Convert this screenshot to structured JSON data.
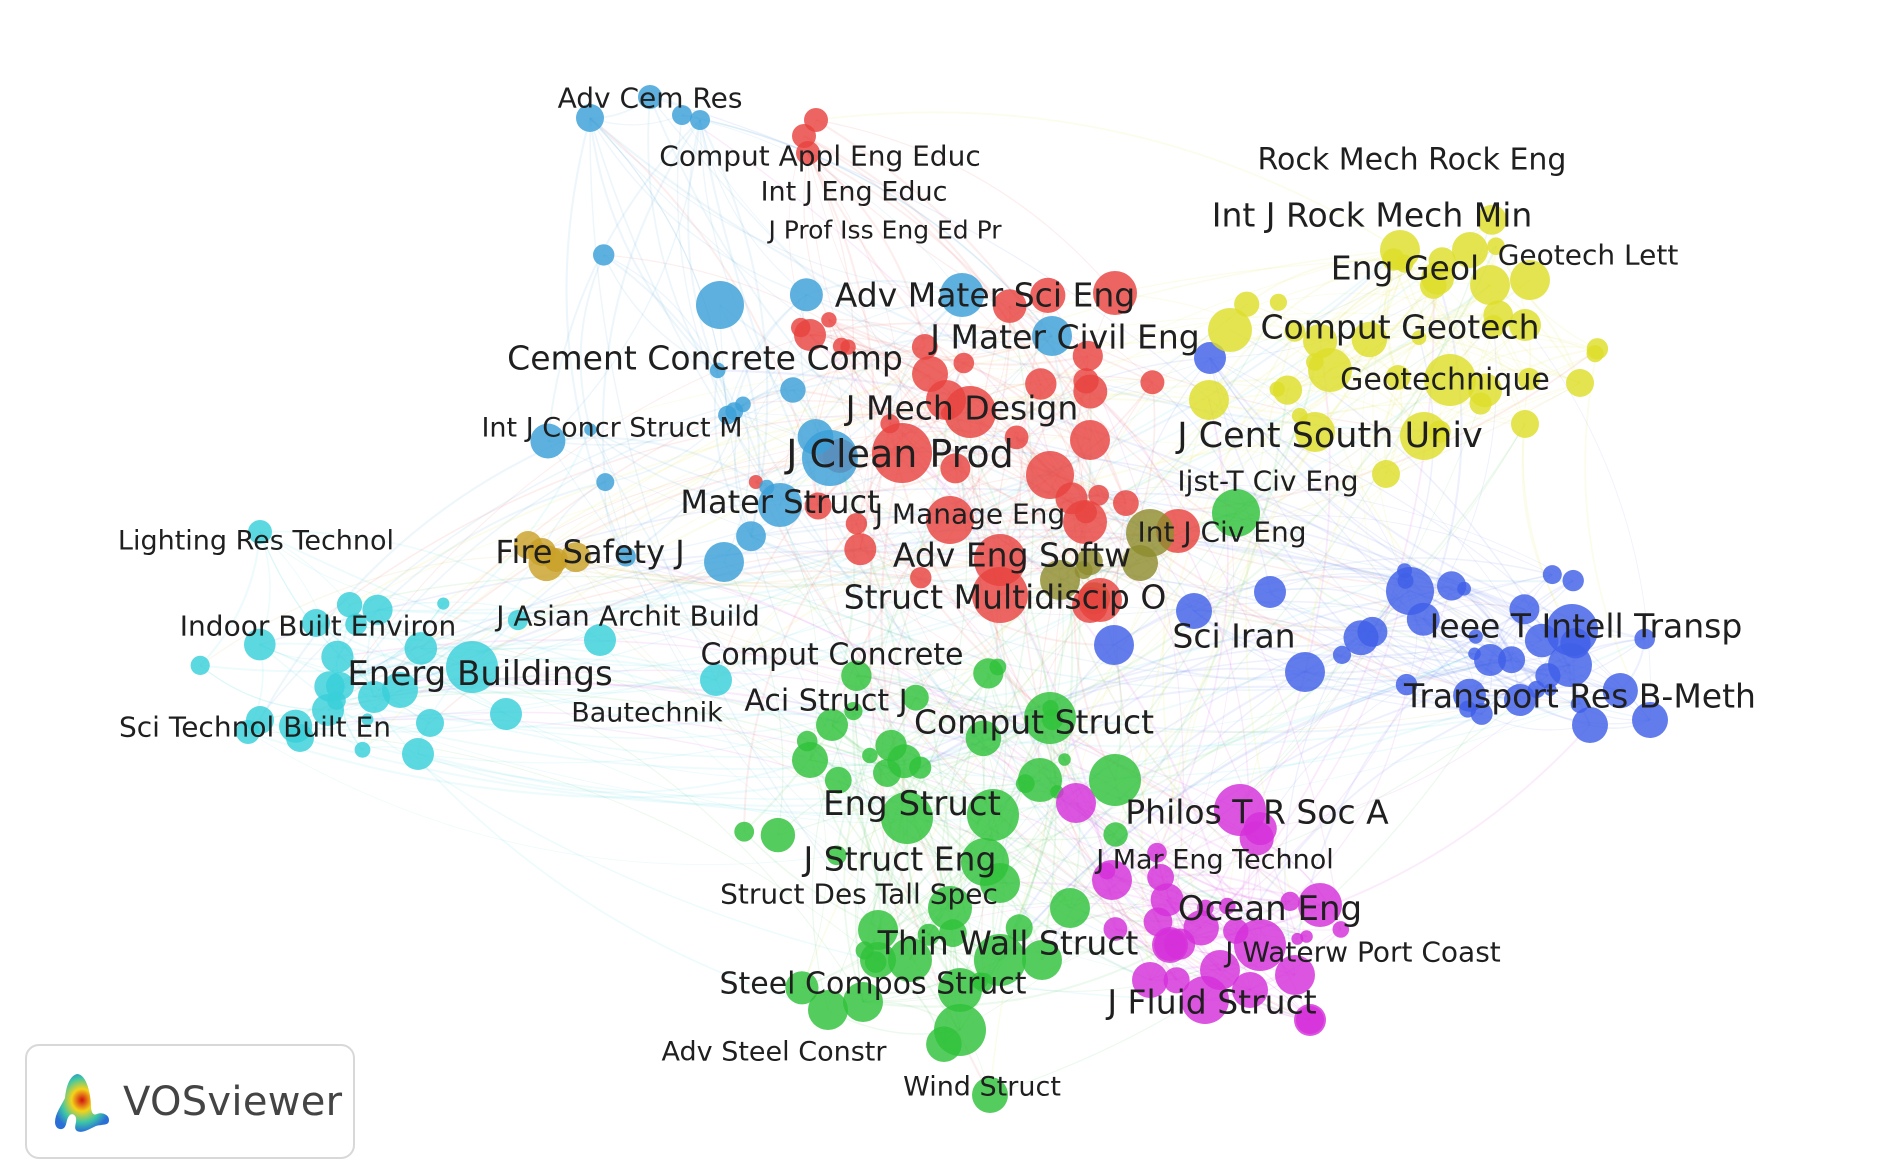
{
  "app": {
    "logo_text": "VOSviewer"
  },
  "clusters": {
    "red": "#e8433f",
    "green": "#2fc23a",
    "blue": "#3f5fe8",
    "yellow": "#dede2b",
    "purple": "#d42fd9",
    "skyblue": "#3aa0d8",
    "orange": "#c9a128",
    "cyan": "#38cfd9",
    "olive": "#8f8c2e"
  },
  "labels": [
    {
      "text": "Adv Cem Res",
      "cluster": "skyblue",
      "size": 28
    },
    {
      "text": "Comput Appl Eng Educ",
      "cluster": "red",
      "size": 28
    },
    {
      "text": "Int J Eng Educ",
      "cluster": "red",
      "size": 27
    },
    {
      "text": "J Prof Iss Eng Ed Pr",
      "cluster": "red",
      "size": 25
    },
    {
      "text": "Adv Mater Sci Eng",
      "cluster": "red",
      "size": 33
    },
    {
      "text": "J Mater Civil Eng",
      "cluster": "skyblue",
      "size": 33
    },
    {
      "text": "Cement Concrete Comp",
      "cluster": "skyblue",
      "size": 33
    },
    {
      "text": "J Mech Design",
      "cluster": "red",
      "size": 33
    },
    {
      "text": "Int J Concr Struct M",
      "cluster": "skyblue",
      "size": 27
    },
    {
      "text": "J Clean Prod",
      "cluster": "red",
      "size": 38
    },
    {
      "text": "Mater Struct",
      "cluster": "skyblue",
      "size": 32
    },
    {
      "text": "J Manage Eng",
      "cluster": "red",
      "size": 28
    },
    {
      "text": "Lighting Res Technol",
      "cluster": "cyan",
      "size": 27
    },
    {
      "text": "Fire Safety J",
      "cluster": "orange",
      "size": 32
    },
    {
      "text": "Adv Eng Softw",
      "cluster": "red",
      "size": 33
    },
    {
      "text": "Struct Multidiscip O",
      "cluster": "red",
      "size": 33
    },
    {
      "text": "Int J Civ Eng",
      "cluster": "olive",
      "size": 28
    },
    {
      "text": "Ijst-T Civ Eng",
      "cluster": "yellow",
      "size": 28
    },
    {
      "text": "J Cent South Univ",
      "cluster": "yellow",
      "size": 35
    },
    {
      "text": "Geotechnique",
      "cluster": "yellow",
      "size": 30
    },
    {
      "text": "Comput Geotech",
      "cluster": "yellow",
      "size": 33
    },
    {
      "text": "Eng Geol",
      "cluster": "yellow",
      "size": 33
    },
    {
      "text": "Geotech Lett",
      "cluster": "yellow",
      "size": 28
    },
    {
      "text": "Int J Rock Mech Min",
      "cluster": "yellow",
      "size": 33
    },
    {
      "text": "Rock Mech Rock Eng",
      "cluster": "yellow",
      "size": 30
    },
    {
      "text": "Indoor Built Environ",
      "cluster": "cyan",
      "size": 28
    },
    {
      "text": "J Asian Archit Build",
      "cluster": "skyblue",
      "size": 28
    },
    {
      "text": "Energ Buildings",
      "cluster": "cyan",
      "size": 34
    },
    {
      "text": "Comput Concrete",
      "cluster": "green",
      "size": 30
    },
    {
      "text": "Sci Iran",
      "cluster": "green",
      "size": 33
    },
    {
      "text": "Ieee T Intell Transp",
      "cluster": "blue",
      "size": 33
    },
    {
      "text": "Transport Res B-Meth",
      "cluster": "blue",
      "size": 33
    },
    {
      "text": "Bautechnik",
      "cluster": "cyan",
      "size": 27
    },
    {
      "text": "Aci Struct J",
      "cluster": "green",
      "size": 30
    },
    {
      "text": "Comput Struct",
      "cluster": "green",
      "size": 33
    },
    {
      "text": "Sci Technol Built En",
      "cluster": "cyan",
      "size": 28
    },
    {
      "text": "Eng Struct",
      "cluster": "green",
      "size": 34
    },
    {
      "text": "Philos T R Soc A",
      "cluster": "purple",
      "size": 33
    },
    {
      "text": "J Struct Eng",
      "cluster": "green",
      "size": 33
    },
    {
      "text": "J Mar Eng Technol",
      "cluster": "purple",
      "size": 27
    },
    {
      "text": "Struct Des Tall Spec",
      "cluster": "green",
      "size": 28
    },
    {
      "text": "Ocean Eng",
      "cluster": "purple",
      "size": 34
    },
    {
      "text": "Thin Wall Struct",
      "cluster": "green",
      "size": 33
    },
    {
      "text": "J Waterw Port Coast",
      "cluster": "purple",
      "size": 28
    },
    {
      "text": "Steel Compos Struct",
      "cluster": "green",
      "size": 30
    },
    {
      "text": "J Fluid Struct",
      "cluster": "purple",
      "size": 33
    },
    {
      "text": "Adv Steel Constr",
      "cluster": "green",
      "size": 27
    },
    {
      "text": "Wind Struct",
      "cluster": "green",
      "size": 27
    }
  ]
}
